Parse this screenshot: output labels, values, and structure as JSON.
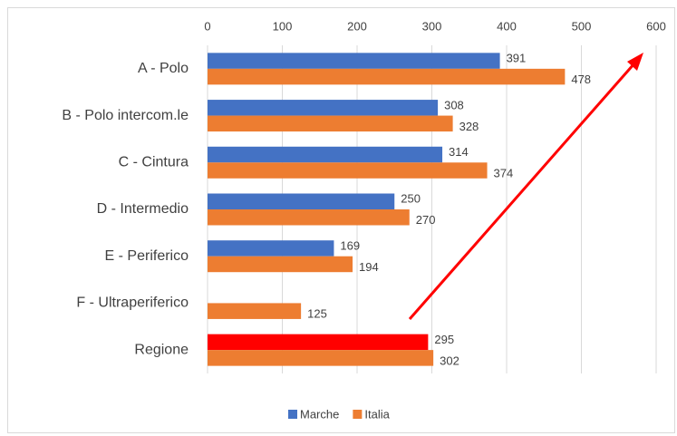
{
  "chart_data": {
    "type": "bar",
    "orientation": "horizontal",
    "categories": [
      "A - Polo",
      "B - Polo intercom.le",
      "C - Cintura",
      "D - Intermedio",
      "E - Periferico",
      "F - Ultraperiferico",
      "Regione"
    ],
    "series": [
      {
        "name": "Marche",
        "color": "#4472c4",
        "values": [
          391,
          308,
          314,
          250,
          169,
          null,
          295
        ],
        "colors": [
          "#4472c4",
          "#4472c4",
          "#4472c4",
          "#4472c4",
          "#4472c4",
          "#4472c4",
          "#ff0000"
        ]
      },
      {
        "name": "Italia",
        "color": "#ed7d31",
        "values": [
          478,
          328,
          374,
          270,
          194,
          125,
          302
        ]
      }
    ],
    "xlim": [
      0,
      600
    ],
    "xticks": [
      0,
      100,
      200,
      300,
      400,
      500,
      600
    ],
    "grid": true,
    "legend": "bottom"
  }
}
